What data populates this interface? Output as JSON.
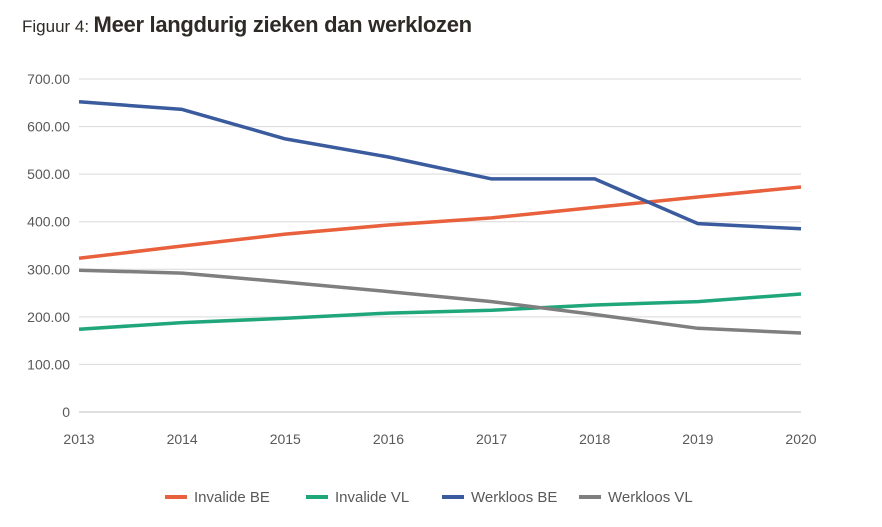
{
  "figure": {
    "label": "Figuur 4:",
    "title": "Meer langdurig zieken dan werklozen"
  },
  "chart_data": {
    "type": "line",
    "x": [
      "2013",
      "2014",
      "2015",
      "2016",
      "2017",
      "2018",
      "2019",
      "2020"
    ],
    "yticks": [
      "0",
      "100.00",
      "200.00",
      "300.00",
      "400.00",
      "500.00",
      "600.00",
      "700.00"
    ],
    "ylim": [
      0,
      700
    ],
    "grid": true,
    "legend_position": "bottom",
    "series": [
      {
        "name": "Invalide BE",
        "color": "#e8603c",
        "values": [
          323,
          349,
          374,
          393,
          408,
          430,
          452,
          473
        ]
      },
      {
        "name": "Invalide VL",
        "color": "#1fa67a",
        "values": [
          174,
          188,
          197,
          208,
          214,
          225,
          232,
          248
        ]
      },
      {
        "name": "Werkloos BE",
        "color": "#3a5b9e",
        "values": [
          652,
          636,
          574,
          536,
          490,
          490,
          396,
          385
        ]
      },
      {
        "name": "Werkloos VL",
        "color": "#7f7f7f",
        "values": [
          298,
          292,
          273,
          253,
          232,
          205,
          176,
          166
        ]
      }
    ]
  }
}
